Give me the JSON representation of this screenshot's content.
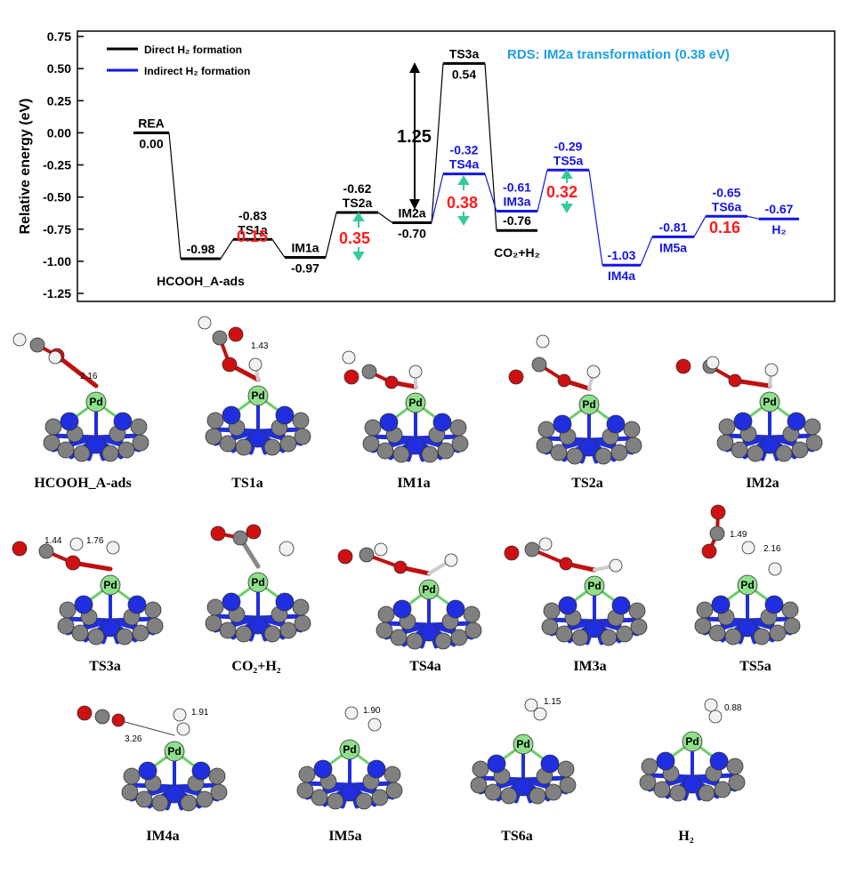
{
  "chart_data": {
    "type": "energy-profile",
    "ylabel": "Relative energy (eV)",
    "ylim": [
      -1.25,
      0.75
    ],
    "yticks": [
      "0.75",
      "0.50",
      "0.25",
      "0.00",
      "-0.25",
      "-0.50",
      "-0.75",
      "-1.00",
      "-1.25"
    ],
    "ytick_values": [
      0.75,
      0.5,
      0.25,
      0,
      -0.25,
      -0.5,
      -0.75,
      -1.0,
      -1.25
    ],
    "legend": [
      {
        "name": "Direct H₂ formation",
        "color": "#000000"
      },
      {
        "name": "Indirect H₂ formation",
        "color": "#1414e6"
      }
    ],
    "annotation": "RDS: IM2a transformation (0.38 eV)",
    "levels": [
      {
        "name": "REA",
        "energy": "0.00",
        "value": 0.0,
        "series": "direct"
      },
      {
        "name": "HCOOH_A-ads",
        "energy": "-0.98",
        "value": -0.98,
        "series": "direct"
      },
      {
        "name": "TS1a",
        "energy": "-0.83",
        "value": -0.83,
        "series": "direct"
      },
      {
        "name": "IM1a",
        "energy": "-0.97",
        "value": -0.97,
        "series": "direct"
      },
      {
        "name": "TS2a",
        "energy": "-0.62",
        "value": -0.62,
        "series": "direct"
      },
      {
        "name": "IM2a",
        "energy": "-0.70",
        "value": -0.7,
        "series": "direct"
      },
      {
        "name": "TS3a",
        "energy": "0.54",
        "value": 0.54,
        "series": "direct"
      },
      {
        "name": "CO₂+H₂",
        "energy": "-0.76",
        "value": -0.76,
        "series": "direct"
      },
      {
        "name": "TS4a",
        "energy": "-0.32",
        "value": -0.32,
        "series": "indirect"
      },
      {
        "name": "IM3a",
        "energy": "-0.61",
        "value": -0.61,
        "series": "indirect"
      },
      {
        "name": "TS5a",
        "energy": "-0.29",
        "value": -0.29,
        "series": "indirect"
      },
      {
        "name": "IM4a",
        "energy": "-1.03",
        "value": -1.03,
        "series": "indirect"
      },
      {
        "name": "IM5a",
        "energy": "-0.81",
        "value": -0.81,
        "series": "indirect"
      },
      {
        "name": "TS6a",
        "energy": "-0.65",
        "value": -0.65,
        "series": "indirect"
      },
      {
        "name": "H₂",
        "energy": "-0.67",
        "value": -0.67,
        "series": "indirect"
      }
    ],
    "barriers": [
      {
        "value": "0.15",
        "color": "#ff1a1a"
      },
      {
        "value": "0.35",
        "color": "#ff1a1a"
      },
      {
        "value": "0.38",
        "color": "#ff1a1a"
      },
      {
        "value": "0.32",
        "color": "#ff1a1a"
      },
      {
        "value": "0.16",
        "color": "#ff1a1a"
      },
      {
        "value": "1.25",
        "color": "#000000"
      }
    ]
  },
  "structures": [
    {
      "label": "HCOOH_A-ads",
      "distances": [
        "2.16"
      ]
    },
    {
      "label": "TS1a",
      "distances": [
        "1.43"
      ]
    },
    {
      "label": "IM1a",
      "distances": []
    },
    {
      "label": "TS2a",
      "distances": []
    },
    {
      "label": "IM2a",
      "distances": []
    },
    {
      "label": "TS3a",
      "distances": [
        "1.44",
        "1.76"
      ]
    },
    {
      "label": "CO₂+H₂",
      "distances": []
    },
    {
      "label": "TS4a",
      "distances": []
    },
    {
      "label": "IM3a",
      "distances": []
    },
    {
      "label": "TS5a",
      "distances": [
        "1.49",
        "2.16"
      ]
    },
    {
      "label": "IM4a",
      "distances": [
        "1.91",
        "3.26"
      ]
    },
    {
      "label": "IM5a",
      "distances": [
        "1.90"
      ]
    },
    {
      "label": "TS6a",
      "distances": [
        "1.15"
      ]
    },
    {
      "label": "H₂",
      "distances": [
        "0.88"
      ]
    }
  ],
  "atom_labels": {
    "pd": "Pd",
    "o": "O",
    "c": "C",
    "h": "H"
  },
  "colors": {
    "direct": "#000000",
    "indirect": "#1414e6",
    "barrier": "#ff1a1a",
    "annotation": "#1ea0e6",
    "arrow": "#33cc99",
    "pd": "#8ee08a",
    "n": "#1f2ee0",
    "carbon": "#808080",
    "o": "#d01010",
    "h": "#f2f2f2",
    "bond_o": "#c01010"
  }
}
